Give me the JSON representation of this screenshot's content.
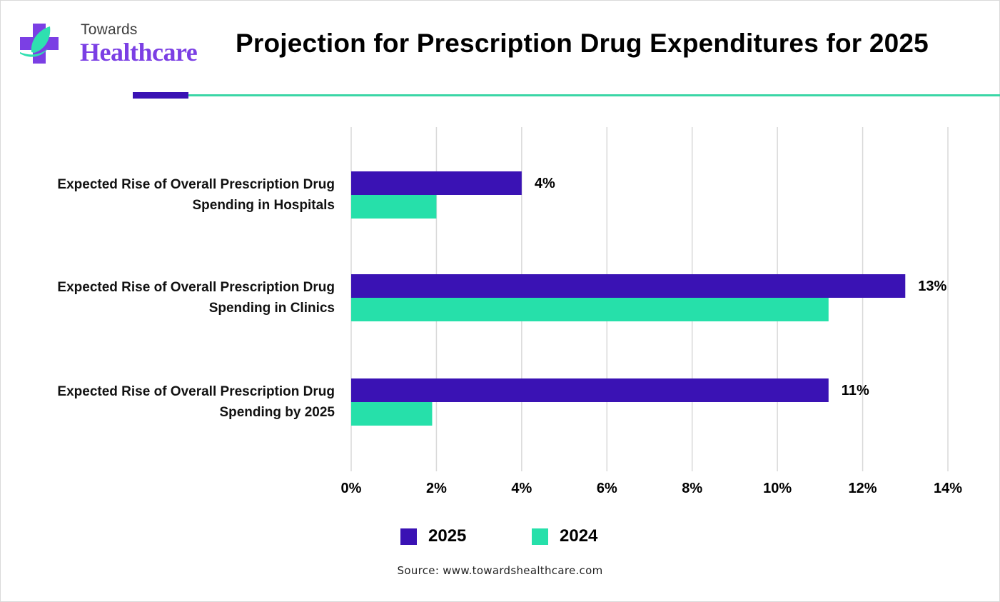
{
  "brand": {
    "name_top": "Towards",
    "name_bottom": "Healthcare",
    "icon": "medical-cross-leaf-icon",
    "colors": {
      "purple": "#7b3fe4",
      "teal": "#2fe0b0",
      "gray": "#3d3d3d"
    }
  },
  "header": {
    "title": "Projection for Prescription Drug Expenditures for 2025",
    "accent_colors": {
      "bar": "#3a12b4",
      "line": "#3ad6a6"
    }
  },
  "chart_data": {
    "type": "bar",
    "orientation": "horizontal",
    "title": "Projection for Prescription Drug Expenditures for 2025",
    "xlabel": "",
    "ylabel": "",
    "xlim": [
      0,
      14
    ],
    "x_ticks": [
      0,
      2,
      4,
      6,
      8,
      10,
      12,
      14
    ],
    "x_tick_labels": [
      "0%",
      "2%",
      "4%",
      "6%",
      "8%",
      "10%",
      "12%",
      "14%"
    ],
    "grid": "vertical",
    "categories": [
      [
        "Expected Rise of Overall Prescription Drug",
        "Spending in Hospitals"
      ],
      [
        "Expected Rise of Overall Prescription Drug",
        "Spending in Clinics"
      ],
      [
        "Expected Rise of Overall Prescription Drug",
        "Spending by 2025"
      ]
    ],
    "series": [
      {
        "name": "2025",
        "color": "#3a12b4",
        "values": [
          4,
          13,
          11.2
        ],
        "labels": [
          "4%",
          "13%",
          "11%"
        ]
      },
      {
        "name": "2024",
        "color": "#26e0aa",
        "values": [
          2,
          11.2,
          1.9
        ],
        "labels": [
          "",
          "",
          ""
        ]
      }
    ],
    "legend": {
      "position": "bottom-center",
      "entries": [
        "2025",
        "2024"
      ]
    }
  },
  "legend": {
    "items": [
      {
        "label": "2025",
        "color": "#3a12b4"
      },
      {
        "label": "2024",
        "color": "#26e0aa"
      }
    ]
  },
  "source": "Source: www.towardshealthcare.com"
}
